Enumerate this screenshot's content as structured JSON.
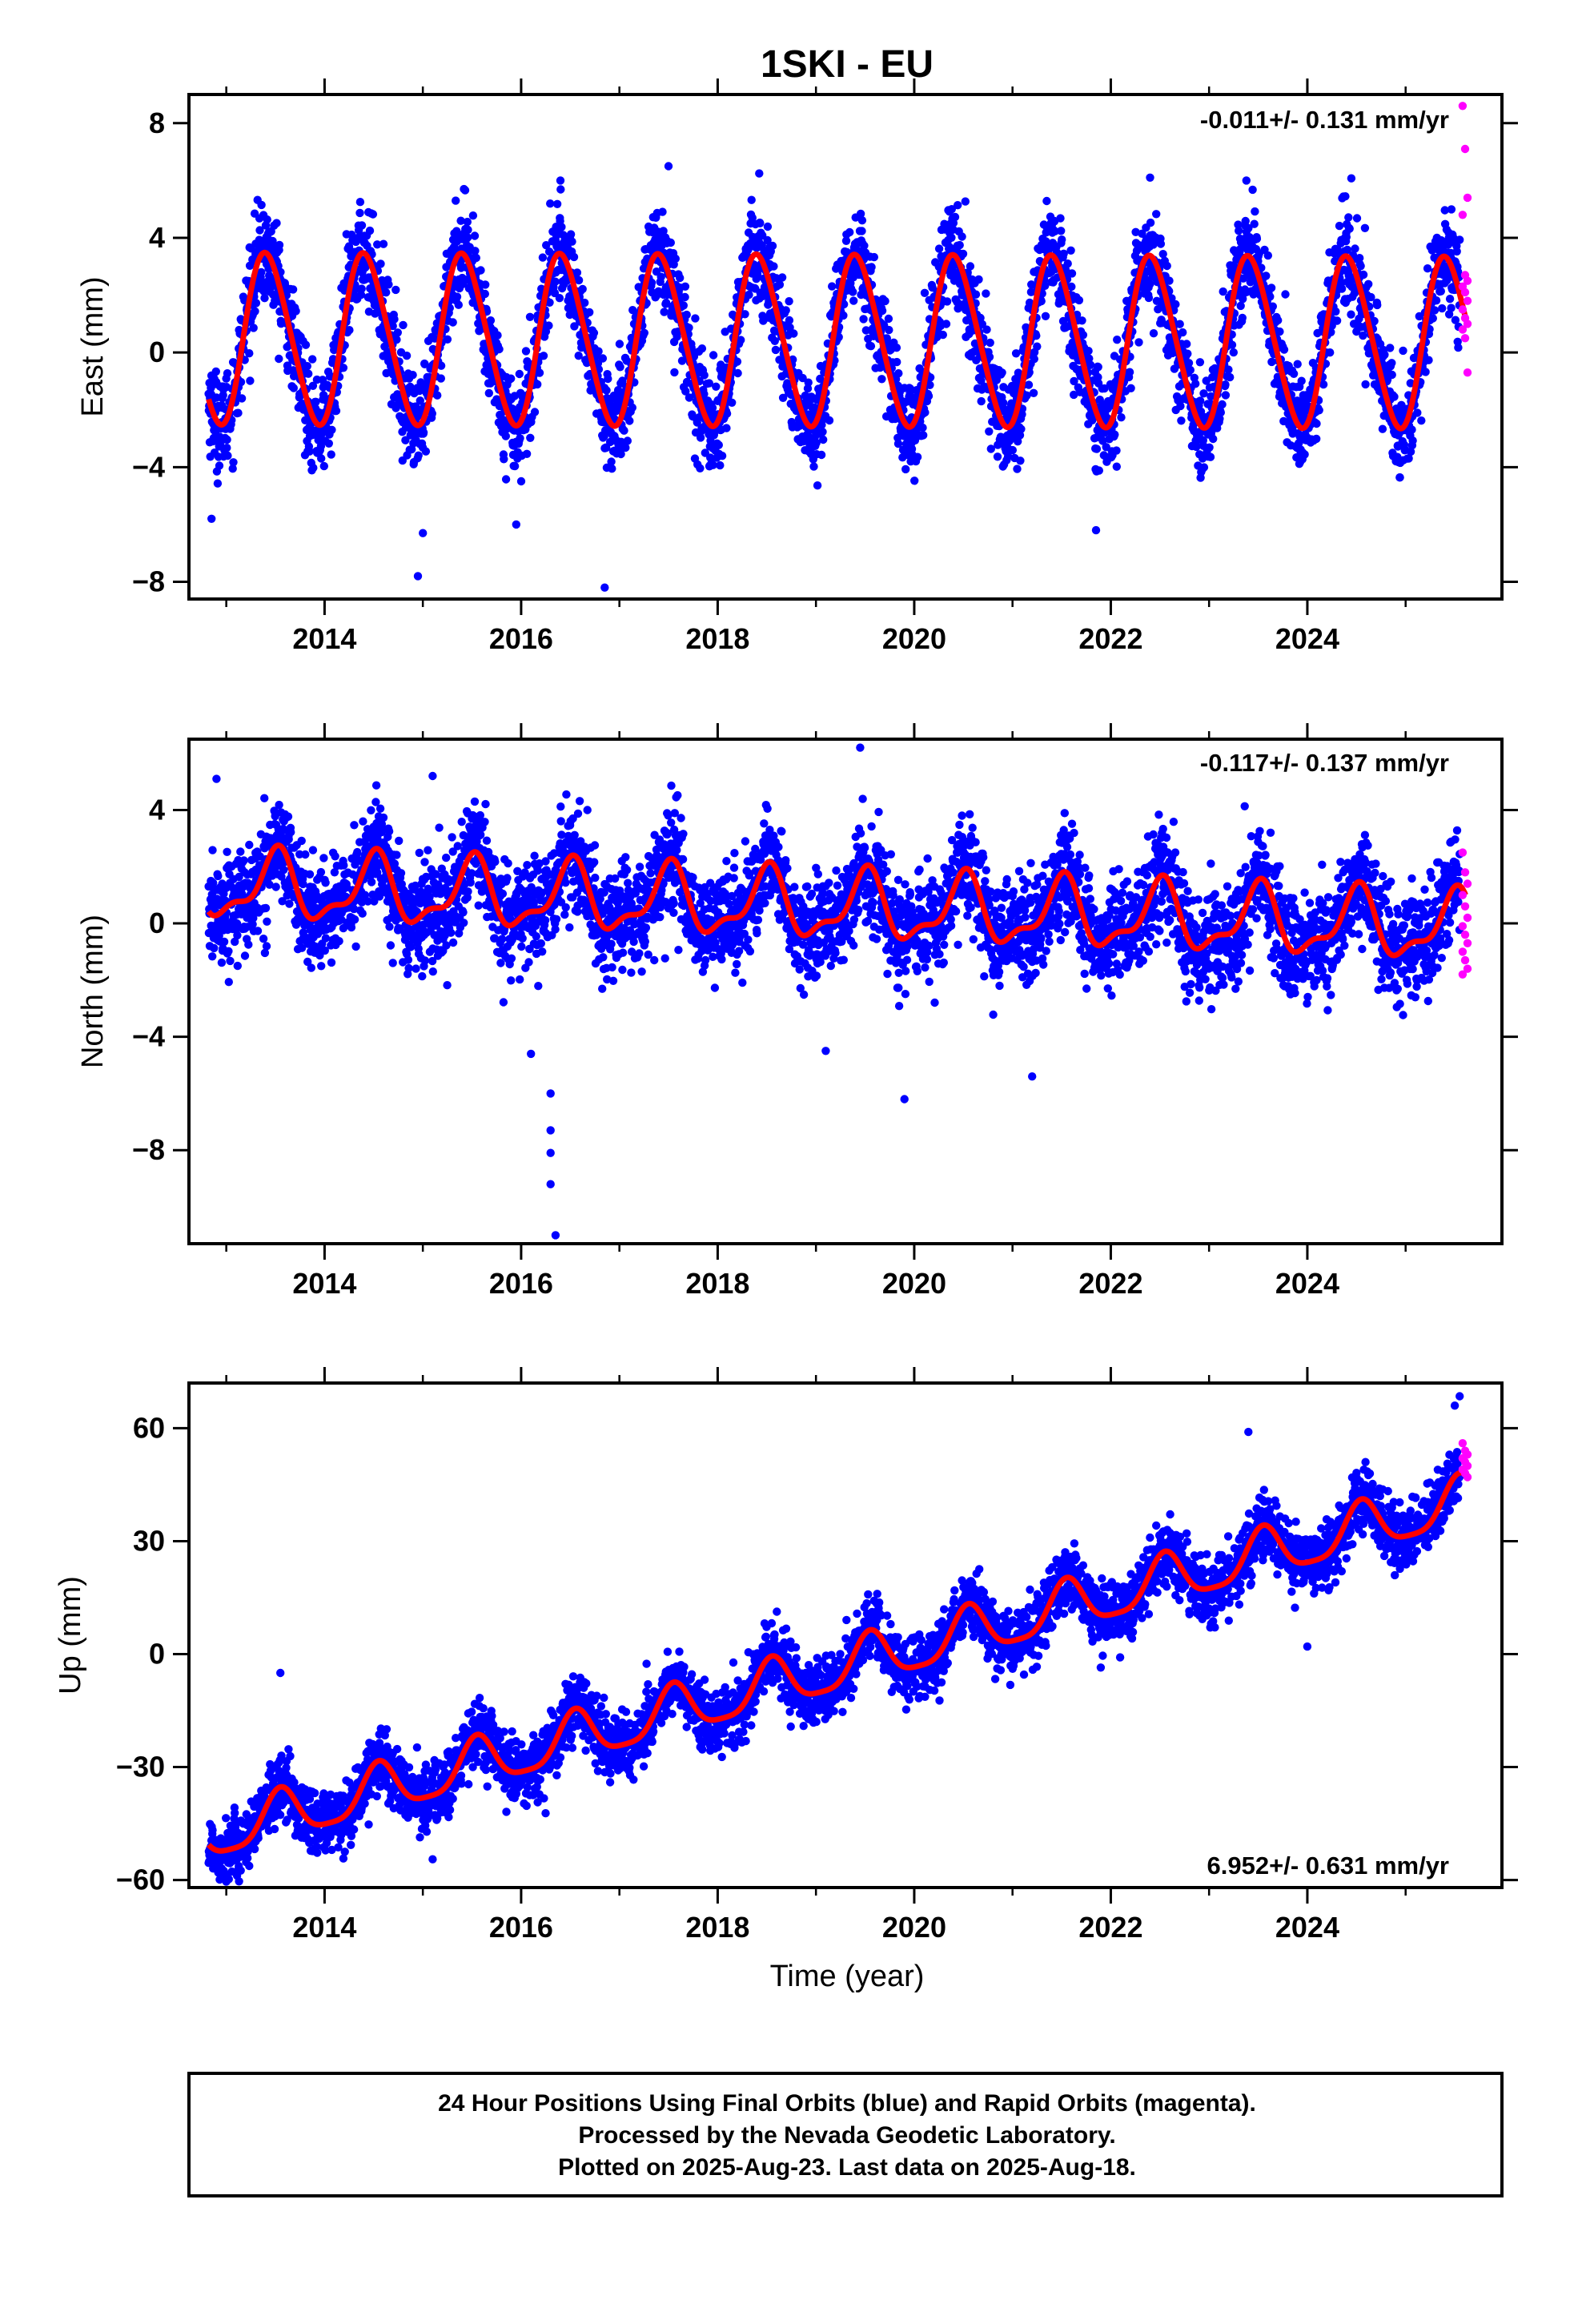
{
  "footer": {
    "line1": "24 Hour Positions Using Final Orbits (blue) and Rapid Orbits (magenta).",
    "line2": "Processed by the Nevada Geodetic Laboratory.",
    "line3": "Plotted on 2025-Aug-23. Last data on 2025-Aug-18."
  },
  "colors": {
    "final": "#0000ff",
    "rapid": "#ff00ff",
    "model": "#ff0000",
    "frame": "#000000"
  },
  "chart_data": [
    {
      "type": "scatter",
      "title": "1SKI - EU",
      "ylabel": "East (mm)",
      "xlabel": "",
      "rate_text": "-0.011+/- 0.131 mm/yr",
      "xlim": [
        2012.62,
        2025.98
      ],
      "ylim": [
        -8.6,
        9.0
      ],
      "xticks": [
        2014,
        2016,
        2018,
        2020,
        2022,
        2024
      ],
      "yticks": [
        -8,
        -4,
        0,
        4,
        8
      ],
      "ytick_labels": [
        "−8",
        "−4",
        "0",
        "4",
        "8"
      ],
      "grid": false,
      "model": {
        "offset": 0.4,
        "trend": -0.011,
        "annual_amp": 2.95,
        "annual_phase_peak": 0.42,
        "semi_amp": 0.3,
        "semi_phase_peak": 0.3
      },
      "series": [
        {
          "name": "Final",
          "time_range": [
            2012.82,
            2025.55
          ],
          "count": 4400,
          "scatter_sd": 0.85
        },
        {
          "name": "Rapid",
          "time_range": [
            2025.58,
            2025.63
          ],
          "values": [
            8.6,
            7.1,
            5.4,
            4.8,
            2.7,
            2.5,
            2.3,
            2.1,
            1.8,
            1.5,
            1.2,
            1.0,
            0.8,
            0.5,
            -0.7
          ]
        }
      ],
      "outliers": [
        [
          2014.95,
          -7.8
        ],
        [
          2016.85,
          -8.2
        ],
        [
          2015.0,
          -6.3
        ],
        [
          2015.95,
          -6.0
        ],
        [
          2021.85,
          -6.2
        ],
        [
          2017.5,
          6.5
        ],
        [
          2016.4,
          6.0
        ],
        [
          2022.4,
          6.1
        ],
        [
          2023.38,
          6.0
        ],
        [
          2012.85,
          -5.8
        ]
      ]
    },
    {
      "type": "scatter",
      "title": "",
      "ylabel": "North (mm)",
      "xlabel": "",
      "rate_text": "-0.117+/- 0.137 mm/yr",
      "xlim": [
        2012.62,
        2025.98
      ],
      "ylim": [
        -11.3,
        6.5
      ],
      "xticks": [
        2014,
        2016,
        2018,
        2020,
        2022,
        2024
      ],
      "yticks": [
        -8,
        -4,
        0,
        4
      ],
      "ytick_labels": [
        "−8",
        "−4",
        "0",
        "4"
      ],
      "grid": false,
      "model": {
        "offset": 0.6,
        "trend": -0.117,
        "annual_amp": 1.1,
        "annual_phase_peak": 0.5,
        "semi_amp": 0.45,
        "semi_phase_peak": 0.05
      },
      "series": [
        {
          "name": "Final",
          "time_range": [
            2012.82,
            2025.55
          ],
          "count": 4400,
          "scatter_sd": 0.9
        },
        {
          "name": "Rapid",
          "time_range": [
            2025.58,
            2025.63
          ],
          "values": [
            2.5,
            1.8,
            1.4,
            1.0,
            0.6,
            0.2,
            -0.1,
            -0.4,
            -0.7,
            -1.0,
            -1.3,
            -1.6,
            -1.8
          ]
        }
      ],
      "outliers": [
        [
          2016.3,
          -6.0
        ],
        [
          2016.3,
          -7.3
        ],
        [
          2016.3,
          -8.1
        ],
        [
          2016.3,
          -9.2
        ],
        [
          2016.35,
          -11.0
        ],
        [
          2019.9,
          -6.2
        ],
        [
          2019.45,
          6.2
        ],
        [
          2015.1,
          5.2
        ],
        [
          2012.9,
          5.1
        ],
        [
          2021.2,
          -5.4
        ],
        [
          2016.1,
          -4.6
        ],
        [
          2019.1,
          -4.5
        ]
      ]
    },
    {
      "type": "scatter",
      "title": "",
      "ylabel": "Up (mm)",
      "xlabel": "Time (year)",
      "rate_text": "6.952+/- 0.631 mm/yr",
      "xlim": [
        2012.62,
        2025.98
      ],
      "ylim": [
        -62,
        72
      ],
      "xticks": [
        2014,
        2016,
        2018,
        2020,
        2022,
        2024
      ],
      "yticks": [
        -60,
        -30,
        0,
        30,
        60
      ],
      "ytick_labels": [
        "−60",
        "−30",
        "0",
        "30",
        "60"
      ],
      "grid": false,
      "model": {
        "offset": -48.5,
        "ref_year": 2012.8,
        "trend": 6.952,
        "annual_amp": 6.5,
        "annual_phase_peak": 0.55,
        "semi_amp": 1.5,
        "semi_phase_peak": 0.05
      },
      "series": [
        {
          "name": "Final",
          "time_range": [
            2012.82,
            2025.55
          ],
          "count": 4400,
          "scatter_sd": 4.2
        },
        {
          "name": "Rapid",
          "time_range": [
            2025.58,
            2025.63
          ],
          "values": [
            56,
            54,
            53,
            52,
            51,
            50,
            49,
            48,
            47
          ]
        }
      ],
      "outliers": [
        [
          2013.55,
          -5.0
        ],
        [
          2023.4,
          59.0
        ],
        [
          2024.0,
          2.0
        ],
        [
          2025.55,
          68.5
        ],
        [
          2025.5,
          66.0
        ],
        [
          2013.0,
          -58.5
        ],
        [
          2015.1,
          -54.5
        ],
        [
          2023.0,
          17.0
        ]
      ]
    }
  ]
}
